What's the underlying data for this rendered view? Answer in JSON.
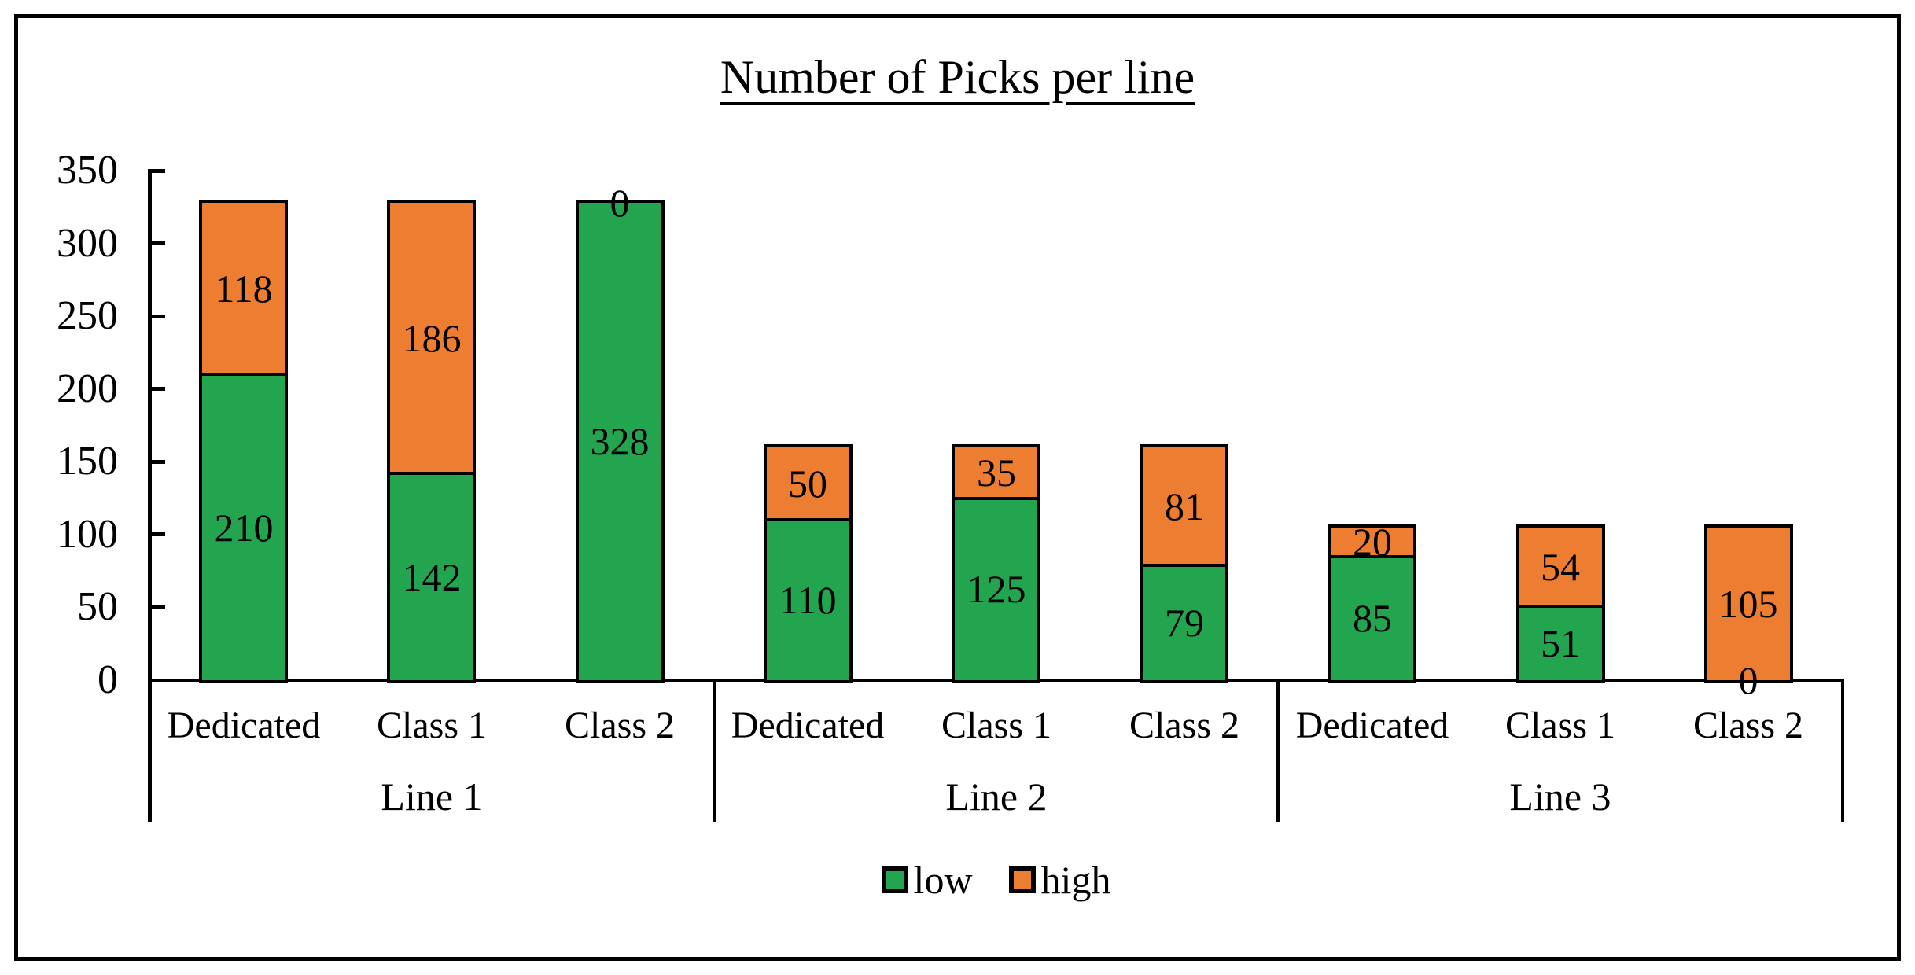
{
  "figure": {
    "border_color": "#000000",
    "background": "#ffffff"
  },
  "chart_data": {
    "type": "bar",
    "stacked": true,
    "title": "Number of Picks per line",
    "xlabel": "",
    "ylabel": "",
    "groups": [
      "Line 1",
      "Line 2",
      "Line 3"
    ],
    "categories_per_group": [
      "Dedicated",
      "Class 1",
      "Class 2"
    ],
    "series": [
      {
        "name": "low",
        "color": "#23A550",
        "values": [
          [
            210,
            142,
            328
          ],
          [
            110,
            125,
            79
          ],
          [
            85,
            51,
            0
          ]
        ]
      },
      {
        "name": "high",
        "color": "#ED7D31",
        "values": [
          [
            118,
            186,
            0
          ],
          [
            50,
            35,
            81
          ],
          [
            20,
            54,
            105
          ]
        ]
      }
    ],
    "stack_totals": [
      [
        328,
        328,
        328
      ],
      [
        160,
        160,
        160
      ],
      [
        105,
        105,
        105
      ]
    ],
    "ylim": [
      0,
      350
    ],
    "y_ticks": [
      0,
      50,
      100,
      150,
      200,
      250,
      300,
      350
    ],
    "grid": false,
    "data_labels": true,
    "legend_position": "bottom",
    "axis_color": "#000000",
    "bar_border_color": "#000000"
  }
}
